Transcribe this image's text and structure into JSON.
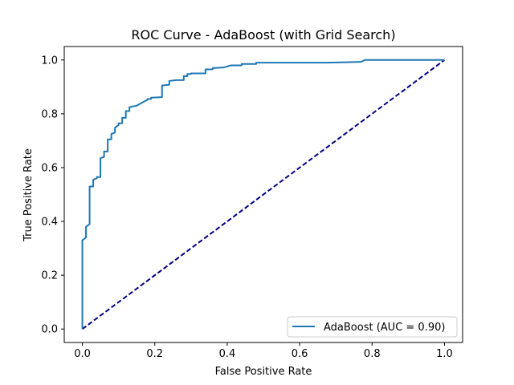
{
  "chart_data": {
    "type": "line",
    "title": "ROC Curve - AdaBoost (with Grid Search)",
    "xlabel": "False Positive Rate",
    "ylabel": "True Positive Rate",
    "xlim": [
      -0.05,
      1.05
    ],
    "ylim": [
      -0.05,
      1.05
    ],
    "xticks": [
      0.0,
      0.2,
      0.4,
      0.6,
      0.8,
      1.0
    ],
    "yticks": [
      0.0,
      0.2,
      0.4,
      0.6,
      0.8,
      1.0
    ],
    "xtick_labels": [
      "0.0",
      "0.2",
      "0.4",
      "0.6",
      "0.8",
      "1.0"
    ],
    "ytick_labels": [
      "0.0",
      "0.2",
      "0.4",
      "0.6",
      "0.8",
      "1.0"
    ],
    "grid": false,
    "legend_position": "lower-right",
    "series": [
      {
        "name": "AdaBoost (AUC = 0.90)",
        "color": "#1f77b4",
        "style": "solid",
        "x": [
          0.0,
          0.0,
          0.01,
          0.01,
          0.02,
          0.02,
          0.03,
          0.03,
          0.04,
          0.04,
          0.05,
          0.05,
          0.06,
          0.06,
          0.07,
          0.07,
          0.08,
          0.08,
          0.09,
          0.09,
          0.1,
          0.1,
          0.11,
          0.11,
          0.12,
          0.12,
          0.13,
          0.13,
          0.15,
          0.17,
          0.18,
          0.18,
          0.19,
          0.19,
          0.22,
          0.22,
          0.24,
          0.24,
          0.26,
          0.28,
          0.28,
          0.29,
          0.29,
          0.3,
          0.3,
          0.34,
          0.34,
          0.36,
          0.36,
          0.39,
          0.41,
          0.44,
          0.44,
          0.47,
          0.48,
          0.48,
          0.62,
          0.68,
          0.77,
          0.78,
          0.78,
          1.0
        ],
        "y": [
          0.0,
          0.33,
          0.34,
          0.38,
          0.39,
          0.53,
          0.53,
          0.555,
          0.56,
          0.565,
          0.565,
          0.635,
          0.64,
          0.66,
          0.66,
          0.705,
          0.705,
          0.725,
          0.73,
          0.748,
          0.758,
          0.765,
          0.765,
          0.785,
          0.785,
          0.81,
          0.81,
          0.825,
          0.83,
          0.845,
          0.852,
          0.855,
          0.855,
          0.86,
          0.862,
          0.905,
          0.908,
          0.922,
          0.925,
          0.925,
          0.94,
          0.94,
          0.948,
          0.948,
          0.95,
          0.95,
          0.965,
          0.965,
          0.97,
          0.972,
          0.98,
          0.98,
          0.985,
          0.985,
          0.985,
          0.99,
          0.99,
          0.99,
          0.993,
          1.0,
          1.0,
          1.0
        ]
      },
      {
        "name": "",
        "color": "#000080",
        "style": "dashed",
        "x": [
          0.0,
          1.0
        ],
        "y": [
          0.0,
          1.0
        ]
      }
    ]
  }
}
